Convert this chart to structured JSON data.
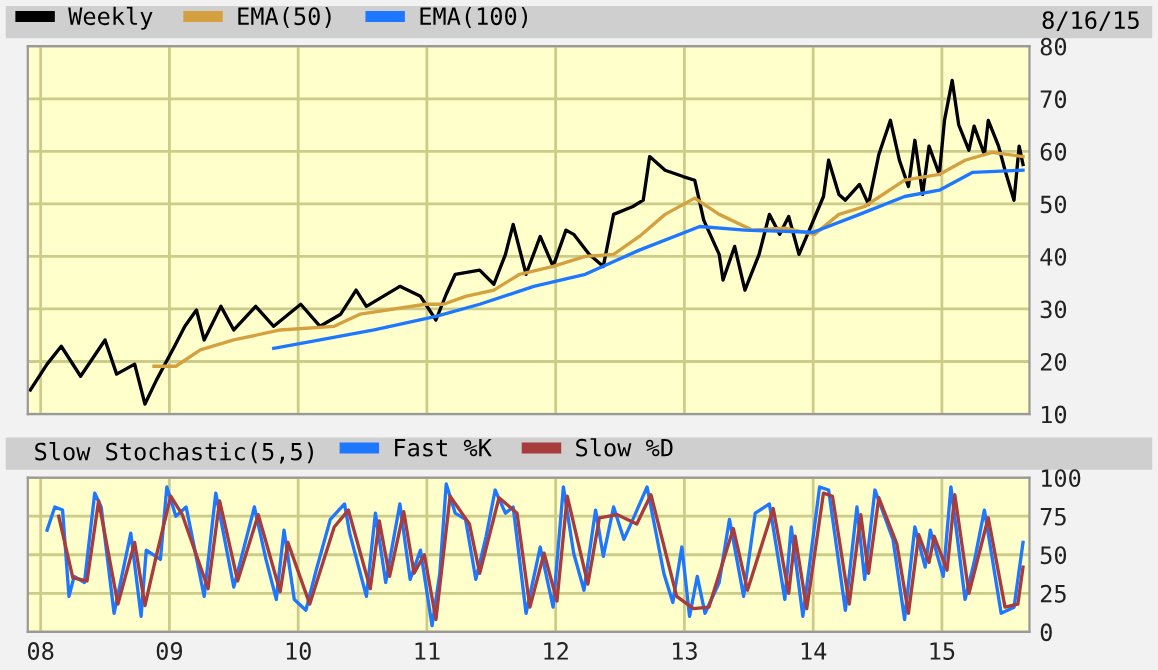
{
  "chart_data": [
    {
      "type": "line",
      "annotations": [
        "8/16/15"
      ],
      "legend": "top left",
      "grid": true,
      "tick_labels": "y",
      "xlim": [
        2007.9,
        2015.68
      ],
      "xticks": [
        {
          "value": 2008,
          "label": null
        },
        {
          "value": 2009,
          "label": null
        },
        {
          "value": 2010,
          "label": null
        },
        {
          "value": 2011,
          "label": null
        },
        {
          "value": 2012,
          "label": null
        },
        {
          "value": 2013,
          "label": null
        },
        {
          "value": 2014,
          "label": null
        },
        {
          "value": 2015,
          "label": null
        }
      ],
      "ylim": [
        10,
        80
      ],
      "yticks": [
        10,
        20,
        30,
        40,
        50,
        60,
        70,
        80
      ],
      "series": [
        {
          "name": "Weekly",
          "color": "#000000",
          "x": [
            2007.92,
            2008.05,
            2008.16,
            2008.31,
            2008.5,
            2008.59,
            2008.73,
            2008.81,
            2008.9,
            2009.04,
            2009.12,
            2009.21,
            2009.27,
            2009.4,
            2009.5,
            2009.67,
            2009.81,
            2010.02,
            2010.17,
            2010.33,
            2010.45,
            2010.53,
            2010.79,
            2010.95,
            2011.07,
            2011.15,
            2011.22,
            2011.41,
            2011.52,
            2011.61,
            2011.67,
            2011.77,
            2011.88,
            2011.98,
            2012.08,
            2012.14,
            2012.26,
            2012.37,
            2012.45,
            2012.6,
            2012.68,
            2012.73,
            2012.85,
            2012.99,
            2013.08,
            2013.15,
            2013.27,
            2013.3,
            2013.39,
            2013.47,
            2013.58,
            2013.66,
            2013.74,
            2013.81,
            2013.89,
            2013.97,
            2014.08,
            2014.12,
            2014.2,
            2014.25,
            2014.36,
            2014.43,
            2014.51,
            2014.6,
            2014.67,
            2014.74,
            2014.79,
            2014.85,
            2014.9,
            2014.98,
            2015.02,
            2015.08,
            2015.13,
            2015.21,
            2015.25,
            2015.33,
            2015.36,
            2015.44,
            2015.49,
            2015.56,
            2015.6,
            2015.63
          ],
          "values": [
            14.6,
            19.5,
            22.9,
            17.2,
            24.1,
            17.6,
            19.5,
            11.9,
            16.5,
            22.9,
            26.7,
            29.8,
            24.1,
            30.5,
            26.0,
            30.5,
            26.7,
            30.9,
            26.7,
            29.0,
            33.6,
            30.5,
            34.3,
            32.4,
            27.9,
            32.8,
            36.6,
            37.4,
            34.7,
            40.4,
            46.1,
            36.6,
            43.8,
            38.1,
            45.0,
            44.2,
            40.4,
            38.1,
            48.0,
            49.5,
            50.7,
            59.0,
            56.4,
            55.2,
            54.5,
            46.9,
            40.4,
            35.5,
            41.9,
            33.6,
            40.4,
            48.0,
            44.2,
            47.6,
            40.4,
            45.0,
            51.4,
            58.3,
            51.8,
            50.7,
            53.7,
            49.9,
            59.4,
            65.9,
            58.3,
            53.3,
            62.1,
            51.8,
            61.0,
            55.6,
            65.9,
            73.5,
            65.1,
            60.2,
            64.8,
            59.4,
            65.9,
            61.0,
            56.4,
            50.7,
            61.0,
            57.5
          ]
        },
        {
          "name": "EMA(50)",
          "color": "#d4a040",
          "x": [
            2008.88,
            2009.05,
            2009.24,
            2009.5,
            2009.86,
            2010.28,
            2010.48,
            2010.99,
            2011.13,
            2011.3,
            2011.52,
            2011.72,
            2011.98,
            2012.23,
            2012.45,
            2012.65,
            2012.85,
            2013.08,
            2013.27,
            2013.53,
            2013.78,
            2014.01,
            2014.2,
            2014.4,
            2014.71,
            2014.98,
            2015.18,
            2015.39,
            2015.63
          ],
          "values": [
            19.1,
            19.1,
            22.2,
            24.1,
            26.0,
            26.7,
            29.0,
            30.9,
            30.9,
            32.4,
            33.6,
            36.6,
            38.1,
            40.0,
            40.4,
            43.8,
            48.0,
            51.1,
            48.0,
            45.0,
            45.4,
            44.2,
            48.0,
            49.5,
            54.5,
            55.6,
            58.3,
            59.8,
            59.0
          ]
        },
        {
          "name": "EMA(100)",
          "color": "#1e78ff",
          "x": [
            2009.81,
            2010.17,
            2010.59,
            2011.07,
            2011.41,
            2011.83,
            2012.23,
            2012.65,
            2013.12,
            2013.47,
            2014.0,
            2014.36,
            2014.71,
            2014.98,
            2015.24,
            2015.63
          ],
          "values": [
            22.5,
            24.1,
            26.0,
            28.6,
            30.9,
            34.3,
            36.6,
            41.2,
            45.7,
            45.0,
            44.6,
            48.0,
            51.4,
            52.6,
            56.0,
            56.4
          ]
        }
      ]
    },
    {
      "type": "line",
      "title": "Slow Stochastic(5,5)",
      "legend": "top left",
      "grid": true,
      "xlim": [
        2007.9,
        2015.68
      ],
      "xticks": [
        {
          "value": 2008,
          "label": "08"
        },
        {
          "value": 2009,
          "label": "09"
        },
        {
          "value": 2010,
          "label": "10"
        },
        {
          "value": 2011,
          "label": "11"
        },
        {
          "value": 2012,
          "label": "12"
        },
        {
          "value": 2013,
          "label": "13"
        },
        {
          "value": 2014,
          "label": "14"
        },
        {
          "value": 2015,
          "label": "15"
        }
      ],
      "ylim": [
        0,
        100
      ],
      "yticks": [
        0,
        25,
        50,
        75,
        100
      ],
      "series": [
        {
          "name": "Fast %K",
          "color": "#1e78ff",
          "x": [
            2008.05,
            2008.11,
            2008.17,
            2008.22,
            2008.26,
            2008.34,
            2008.42,
            2008.47,
            2008.57,
            2008.7,
            2008.78,
            2008.82,
            2008.93,
            2008.98,
            2009.05,
            2009.13,
            2009.27,
            2009.36,
            2009.5,
            2009.66,
            2009.75,
            2009.83,
            2009.89,
            2009.97,
            2010.06,
            2010.14,
            2010.25,
            2010.36,
            2010.4,
            2010.53,
            2010.6,
            2010.68,
            2010.79,
            2010.87,
            2010.95,
            2011.04,
            2011.1,
            2011.15,
            2011.22,
            2011.3,
            2011.38,
            2011.46,
            2011.53,
            2011.61,
            2011.67,
            2011.77,
            2011.88,
            2011.98,
            2012.06,
            2012.14,
            2012.22,
            2012.31,
            2012.37,
            2012.45,
            2012.53,
            2012.6,
            2012.71,
            2012.84,
            2012.91,
            2012.98,
            2013.04,
            2013.1,
            2013.16,
            2013.27,
            2013.35,
            2013.46,
            2013.55,
            2013.66,
            2013.78,
            2013.83,
            2013.92,
            2014.05,
            2014.12,
            2014.25,
            2014.34,
            2014.4,
            2014.48,
            2014.62,
            2014.71,
            2014.79,
            2014.87,
            2014.91,
            2015.01,
            2015.07,
            2015.18,
            2015.25,
            2015.33,
            2015.46,
            2015.56,
            2015.63
          ],
          "values": [
            66,
            81,
            79,
            23,
            36,
            32,
            90,
            81,
            12,
            64,
            10,
            53,
            47,
            94,
            75,
            81,
            23,
            90,
            29,
            81,
            47,
            21,
            66,
            21,
            14,
            40,
            73,
            83,
            64,
            23,
            77,
            32,
            83,
            34,
            53,
            4,
            38,
            96,
            77,
            73,
            34,
            62,
            92,
            77,
            81,
            12,
            55,
            16,
            94,
            51,
            27,
            79,
            49,
            81,
            60,
            73,
            94,
            38,
            19,
            55,
            10,
            36,
            12,
            32,
            73,
            23,
            77,
            83,
            21,
            68,
            10,
            94,
            92,
            14,
            81,
            34,
            92,
            60,
            8,
            68,
            42,
            66,
            36,
            94,
            21,
            45,
            79,
            12,
            16,
            58
          ]
        },
        {
          "name": "Slow %D",
          "color": "#a83c3c",
          "x": [
            2008.14,
            2008.25,
            2008.36,
            2008.45,
            2008.6,
            2008.73,
            2008.81,
            2008.9,
            2009.01,
            2009.1,
            2009.3,
            2009.39,
            2009.53,
            2009.69,
            2009.86,
            2009.92,
            2010.09,
            2010.28,
            2010.39,
            2010.56,
            2010.63,
            2010.71,
            2010.82,
            2010.9,
            2010.98,
            2011.07,
            2011.18,
            2011.33,
            2011.41,
            2011.56,
            2011.7,
            2011.8,
            2011.91,
            2012.01,
            2012.09,
            2012.25,
            2012.34,
            2012.48,
            2012.63,
            2012.74,
            2012.94,
            2013.07,
            2013.19,
            2013.38,
            2013.49,
            2013.69,
            2013.81,
            2013.86,
            2013.95,
            2014.08,
            2014.15,
            2014.28,
            2014.37,
            2014.43,
            2014.51,
            2014.65,
            2014.74,
            2014.82,
            2014.9,
            2014.94,
            2015.04,
            2015.1,
            2015.21,
            2015.36,
            2015.49,
            2015.59,
            2015.63
          ],
          "values": [
            75,
            35,
            33,
            85,
            18,
            58,
            17,
            50,
            88,
            76,
            28,
            85,
            33,
            76,
            26,
            58,
            18,
            68,
            79,
            28,
            72,
            36,
            78,
            38,
            50,
            8,
            88,
            70,
            38,
            87,
            77,
            16,
            51,
            20,
            88,
            31,
            74,
            76,
            70,
            89,
            23,
            15,
            16,
            67,
            27,
            80,
            25,
            62,
            15,
            90,
            88,
            18,
            76,
            38,
            87,
            57,
            12,
            63,
            45,
            62,
            40,
            89,
            25,
            74,
            16,
            18,
            42
          ]
        }
      ]
    }
  ]
}
